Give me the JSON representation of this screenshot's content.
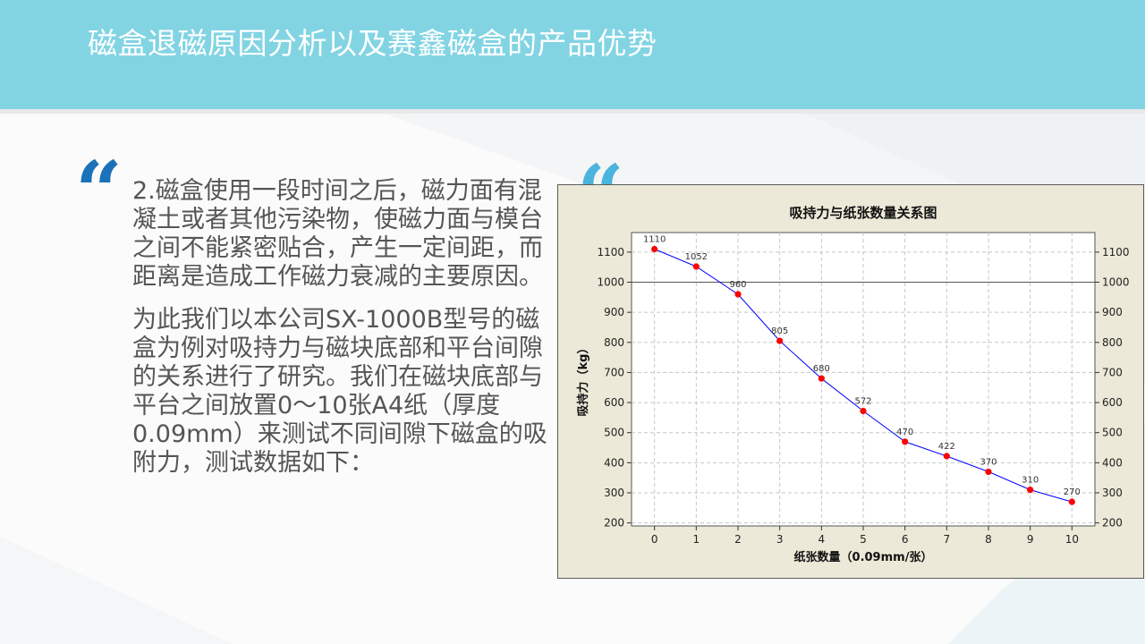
{
  "header": {
    "title": "磁盒退磁原因分析以及赛鑫磁盒的产品优势"
  },
  "body": {
    "paragraph_1": "2.磁盒使用一段时间之后，磁力面有混凝土或者其他污染物，使磁力面与模台之间不能紧密贴合，产生一定间距，而距离是造成工作磁力衰减的主要原因。",
    "paragraph_2": "为此我们以本公司SX-1000B型号的磁盒为例对吸持力与磁块底部和平台间隙的关系进行了研究。我们在磁块底部与平台之间放置0～10张A4纸（厚度0.09mm）来测试不同间隙下磁盒的吸附力，测试数据如下："
  },
  "colors": {
    "header": "#82d4e3",
    "quote_dark": "#1b72b8",
    "quote_light": "#4ab4dd",
    "series": "#0000ff",
    "points": "#ff0000"
  },
  "chart_data": {
    "type": "line",
    "title": "吸持力与纸张数量关系图",
    "xlabel": "纸张数量（0.09mm/张）",
    "ylabel": "吸持力（kg）",
    "x": [
      0,
      1,
      2,
      3,
      4,
      5,
      6,
      7,
      8,
      9,
      10
    ],
    "series": [
      {
        "values": [
          1110,
          1052,
          960,
          805,
          680,
          572,
          470,
          422,
          370,
          310,
          270
        ]
      }
    ],
    "data_labels": [
      "1110",
      "1052",
      "960",
      "805",
      "680",
      "572",
      "470",
      "422",
      "370",
      "310",
      "270"
    ],
    "x_ticks": [
      "0",
      "1",
      "2",
      "3",
      "4",
      "5",
      "6",
      "7",
      "8",
      "9",
      "10"
    ],
    "y_ticks": [
      "200",
      "300",
      "400",
      "500",
      "600",
      "700",
      "800",
      "900",
      "1000",
      "1100"
    ],
    "xlim": [
      -0.55,
      10.55
    ],
    "ylim": [
      190,
      1165
    ],
    "reference_line": 1000,
    "grid": true,
    "secondary_y_axis": true
  }
}
